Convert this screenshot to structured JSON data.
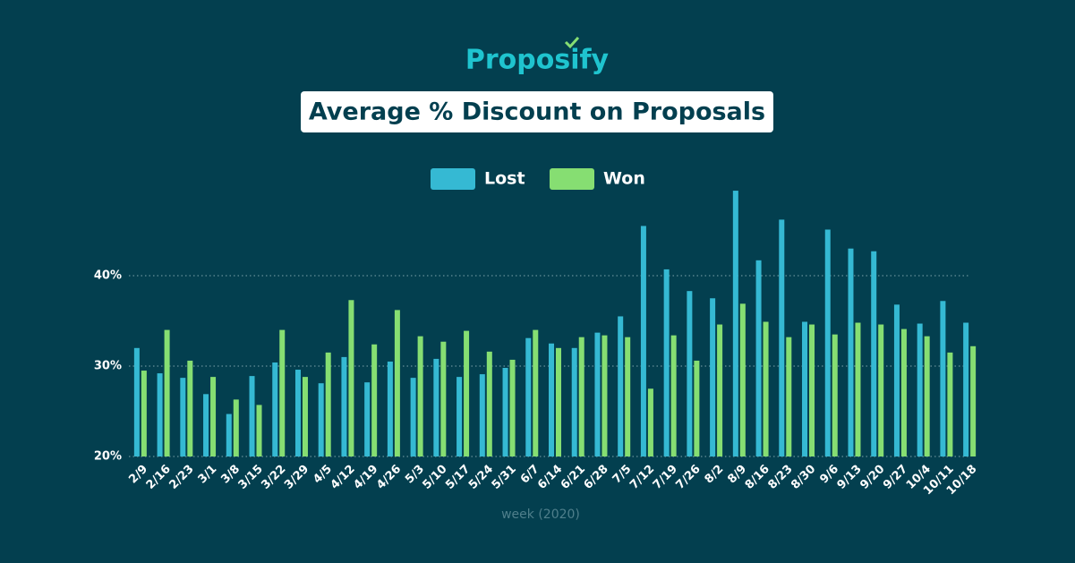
{
  "logo": "Proposify",
  "chart_data": {
    "type": "bar",
    "title": "Average % Discount on Proposals",
    "x_label": "week (2020)",
    "categories": [
      "2/9",
      "2/16",
      "2/23",
      "3/1",
      "3/8",
      "3/15",
      "3/22",
      "3/29",
      "4/5",
      "4/12",
      "4/19",
      "4/26",
      "5/3",
      "5/10",
      "5/17",
      "5/24",
      "5/31",
      "6/7",
      "6/14",
      "6/21",
      "6/28",
      "7/5",
      "7/12",
      "7/19",
      "7/26",
      "8/2",
      "8/9",
      "8/16",
      "8/23",
      "8/30",
      "9/6",
      "9/13",
      "9/20",
      "9/27",
      "10/4",
      "10/11",
      "10/18"
    ],
    "series": [
      {
        "name": "Lost",
        "color": "#35b9d3",
        "values": [
          32.0,
          29.2,
          28.7,
          26.9,
          24.7,
          28.9,
          30.4,
          29.6,
          28.1,
          31.0,
          28.2,
          30.5,
          28.7,
          30.8,
          28.8,
          29.1,
          29.8,
          33.1,
          32.5,
          32.0,
          33.7,
          35.5,
          45.5,
          40.7,
          38.3,
          37.5,
          49.4,
          41.7,
          46.2,
          34.9,
          45.1,
          43.0,
          42.7,
          36.8,
          34.7,
          37.2,
          34.8
        ]
      },
      {
        "name": "Won",
        "color": "#86de72",
        "values": [
          29.5,
          34.0,
          30.6,
          28.8,
          26.3,
          25.7,
          34.0,
          28.8,
          31.5,
          37.3,
          32.4,
          36.2,
          33.3,
          32.7,
          33.9,
          31.6,
          30.7,
          34.0,
          32.0,
          33.2,
          33.4,
          33.2,
          27.5,
          33.4,
          30.6,
          34.6,
          36.9,
          34.9,
          33.2,
          34.6,
          33.5,
          34.8,
          34.6,
          34.1,
          33.3,
          31.5,
          32.2
        ]
      }
    ],
    "ylim": [
      20,
      50
    ],
    "yticks": [
      {
        "value": 20,
        "label": "20%"
      },
      {
        "value": 30,
        "label": "30%"
      },
      {
        "value": 40,
        "label": "40%"
      }
    ],
    "grid": true
  }
}
